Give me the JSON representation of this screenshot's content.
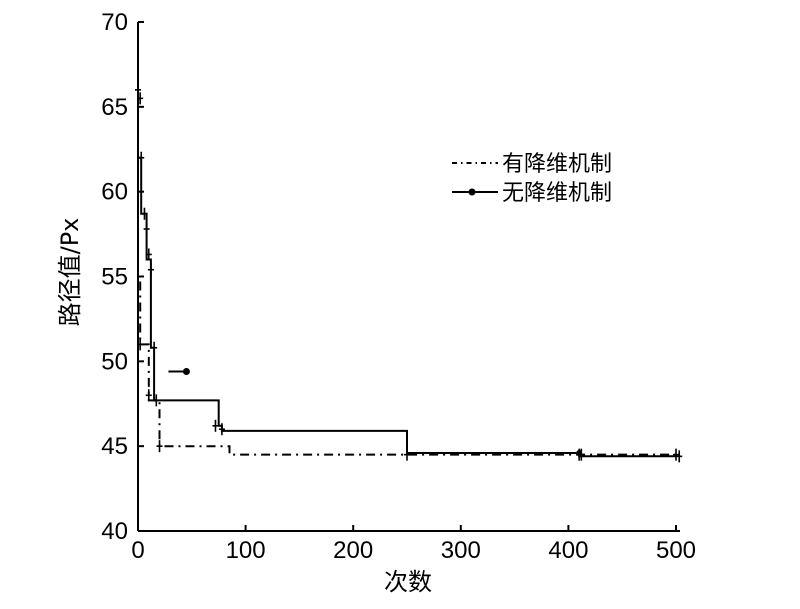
{
  "chart_data": {
    "type": "line",
    "xlabel": "次数",
    "ylabel": "路径值/Px",
    "xlim": [
      0,
      500
    ],
    "ylim": [
      40,
      70
    ],
    "x_ticks": [
      "0",
      "100",
      "200",
      "300",
      "400",
      "500"
    ],
    "y_ticks": [
      "40",
      "45",
      "50",
      "55",
      "60",
      "65",
      "70"
    ],
    "grid": false,
    "legend_position": "top-right",
    "series": [
      {
        "name": "有降维机制",
        "style": "dash-dot",
        "x": [
          0,
          0,
          2,
          2,
          10,
          10,
          20,
          20,
          85,
          85,
          500
        ],
        "y": [
          62,
          55,
          55,
          51,
          51,
          47.7,
          47.7,
          45,
          45,
          44.5,
          44.5
        ]
      },
      {
        "name": "无降维机制",
        "style": "solid-dot-marker",
        "x": [
          0,
          0,
          3,
          3,
          8,
          8,
          12,
          12,
          15,
          15,
          25,
          25,
          75,
          75,
          78,
          78,
          250,
          250,
          410,
          410,
          500
        ],
        "y": [
          66,
          62,
          62,
          58.7,
          58.7,
          56,
          56,
          50.8,
          50.8,
          47.7,
          47.7,
          47.7,
          47.7,
          46.2,
          46.2,
          45.9,
          45.9,
          44.6,
          44.6,
          44.4,
          44.4
        ]
      }
    ],
    "censor_marks": {
      "有降维机制": [
        [
          2,
          51
        ],
        [
          10,
          48
        ],
        [
          20,
          45
        ],
        [
          250,
          44.5
        ],
        [
          410,
          44.5
        ],
        [
          500,
          44.5
        ]
      ],
      "无降维机制": [
        [
          0,
          66
        ],
        [
          2,
          65.5
        ],
        [
          3,
          62
        ],
        [
          6,
          58.7
        ],
        [
          8,
          57.8
        ],
        [
          10,
          56.3
        ],
        [
          12,
          55.4
        ],
        [
          15,
          50.8
        ],
        [
          17,
          47.7
        ],
        [
          72,
          46.2
        ],
        [
          78,
          46
        ],
        [
          412,
          44.5
        ],
        [
          503,
          44.4
        ]
      ]
    },
    "legend_marker_points": [
      [
        45,
        49.4
      ],
      [
        410,
        44.6
      ]
    ]
  }
}
